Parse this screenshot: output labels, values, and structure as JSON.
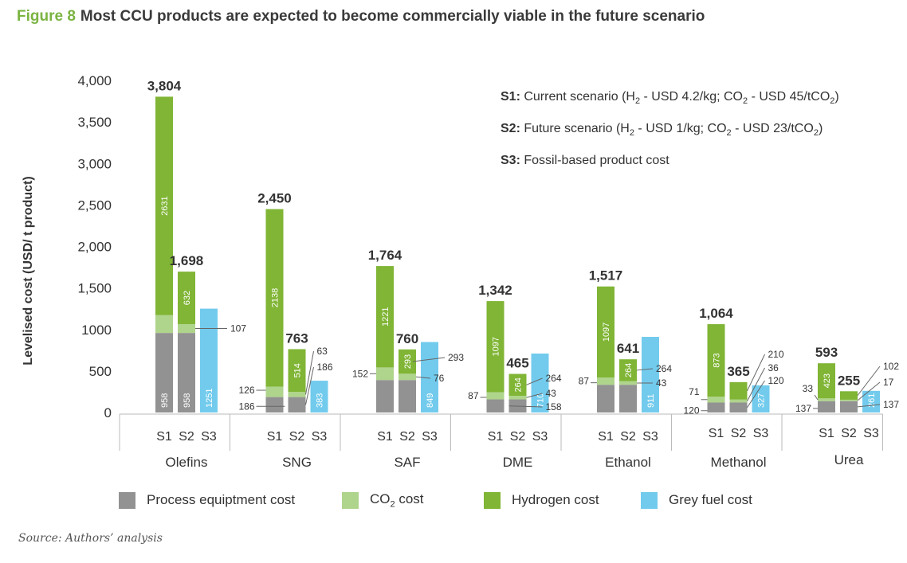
{
  "figure": {
    "number": "Figure 8",
    "title": "Most CCU products are expected to become commercially viable in the future scenario",
    "source": "Source: Authors’ analysis"
  },
  "scenarios": [
    {
      "key": "S1:",
      "text_before": " Current scenario (H",
      "sub1": "2",
      "text_mid": " - USD 4.2/kg; CO",
      "sub2": "2",
      "text_after": " - USD 45/tCO",
      "sub3": "2",
      "close": ")"
    },
    {
      "key": "S2:",
      "text_before": " Future scenario (H",
      "sub1": "2",
      "text_mid": " - USD 1/kg; CO",
      "sub2": "2",
      "text_after": " - USD 23/tCO",
      "sub3": "2",
      "close": ")"
    },
    {
      "key": "S3:",
      "text_before": " Fossil-based product cost",
      "sub1": "",
      "text_mid": "",
      "sub2": "",
      "text_after": "",
      "sub3": "",
      "close": ""
    }
  ],
  "legend": [
    {
      "label": "Process equiptment cost",
      "sub": "",
      "label_after": "",
      "color": "#929292"
    },
    {
      "label": "CO",
      "sub": "2",
      "label_after": " cost",
      "color": "#afd48c"
    },
    {
      "label": "Hydrogen cost",
      "sub": "",
      "label_after": "",
      "color": "#80b535"
    },
    {
      "label": "Grey fuel cost",
      "sub": "",
      "label_after": "",
      "color": "#72cbed"
    }
  ],
  "colors": {
    "process": "#929292",
    "co2": "#afd48c",
    "hydrogen": "#80b535",
    "grey": "#72cbed",
    "accent": "#7ab441"
  },
  "chart_data": {
    "type": "bar",
    "stacked": true,
    "ylabel": "Levelised cost (USD/ t product)",
    "ylim": [
      0,
      4000
    ],
    "yticks": [
      "0",
      "500",
      "1000",
      "1,500",
      "2,000",
      "2,500",
      "3,000",
      "3,500",
      "4,000"
    ],
    "grid": false,
    "legend_position": "bottom",
    "groups": [
      {
        "name": "Olefins",
        "bars": [
          {
            "label": "S1",
            "process": 958,
            "co2": 215,
            "hydrogen": 2631,
            "total_label": "3,804"
          },
          {
            "label": "S2",
            "process": 958,
            "co2": 107,
            "hydrogen": 632,
            "total_label": "1,698"
          },
          {
            "label": "S3",
            "grey": 1251
          }
        ]
      },
      {
        "name": "SNG",
        "bars": [
          {
            "label": "S1",
            "process": 186,
            "co2": 126,
            "hydrogen": 2138,
            "total_label": "2,450"
          },
          {
            "label": "S2",
            "process": 186,
            "co2": 63,
            "hydrogen": 514,
            "total_label": "763"
          },
          {
            "label": "S3",
            "grey": 383
          }
        ]
      },
      {
        "name": "SAF",
        "bars": [
          {
            "label": "S1",
            "process": 391,
            "co2": 152,
            "hydrogen": 1221,
            "total_label": "1,764"
          },
          {
            "label": "S2",
            "process": 391,
            "co2": 76,
            "hydrogen": 293,
            "total_label": "760"
          },
          {
            "label": "S3",
            "grey": 849
          }
        ]
      },
      {
        "name": "DME",
        "bars": [
          {
            "label": "S1",
            "process": 158,
            "co2": 87,
            "hydrogen": 1097,
            "total_label": "1,342"
          },
          {
            "label": "S2",
            "process": 158,
            "co2": 43,
            "hydrogen": 264,
            "total_label": "465"
          },
          {
            "label": "S3",
            "grey": 710
          }
        ]
      },
      {
        "name": "Ethanol",
        "bars": [
          {
            "label": "S1",
            "process": 334,
            "co2": 87,
            "hydrogen": 1097,
            "total_label": "1,517"
          },
          {
            "label": "S2",
            "process": 334,
            "co2": 43,
            "hydrogen": 264,
            "total_label": "641"
          },
          {
            "label": "S3",
            "grey": 911
          }
        ]
      },
      {
        "name": "Methanol",
        "bars": [
          {
            "label": "S1",
            "process": 120,
            "co2": 71,
            "hydrogen": 873,
            "total_label": "1,064"
          },
          {
            "label": "S2",
            "process": 120,
            "co2": 36,
            "hydrogen": 210,
            "total_label": "365"
          },
          {
            "label": "S3",
            "grey": 327
          }
        ]
      },
      {
        "name": "Urea",
        "bars": [
          {
            "label": "S1",
            "process": 137,
            "co2": 33,
            "hydrogen": 423,
            "total_label": "593"
          },
          {
            "label": "S2",
            "process": 137,
            "co2": 17,
            "hydrogen": 102,
            "total_label": "255"
          },
          {
            "label": "S3",
            "grey": 261
          }
        ]
      }
    ]
  }
}
